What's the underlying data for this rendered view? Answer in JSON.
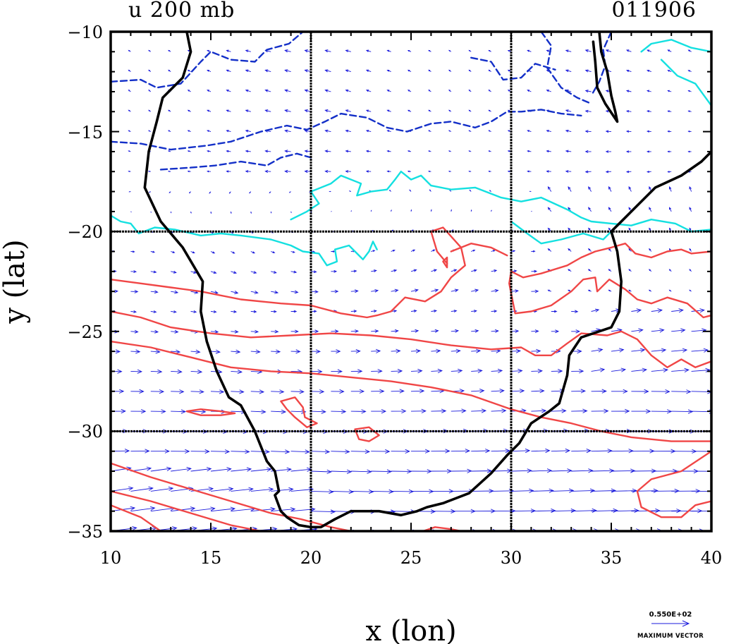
{
  "title": {
    "variable": "u 200 mb",
    "date_code": "011906"
  },
  "axes": {
    "x_label": "x (lon)",
    "y_label": "y (lat)",
    "x_range": [
      10,
      40
    ],
    "y_range": [
      -35,
      -10
    ],
    "x_ticks": [
      "10",
      "15",
      "20",
      "25",
      "30",
      "35",
      "40"
    ],
    "y_ticks": [
      "−10",
      "−15",
      "−20",
      "−25",
      "−30",
      "−35"
    ],
    "grid_lines_lon": [
      20,
      30
    ],
    "grid_lines_lat": [
      -20,
      -30
    ]
  },
  "legend": {
    "value": "0.550E+02",
    "caption": "MAXIMUM VECTOR"
  },
  "colors": {
    "frame": "#000000",
    "coastline": "#000000",
    "vectors": "#1a1adc",
    "negative_contour": "#1430c8",
    "zero_contour": "#14e0e0",
    "positive_contour": "#f04646"
  },
  "map_data": {
    "coastline_west": [
      [
        13.8,
        -10
      ],
      [
        14.0,
        -11
      ],
      [
        13.6,
        -12.3
      ],
      [
        12.6,
        -13.3
      ],
      [
        12.3,
        -14.5
      ],
      [
        11.9,
        -16.0
      ],
      [
        11.7,
        -17.8
      ],
      [
        12.5,
        -19.5
      ],
      [
        13.6,
        -20.8
      ],
      [
        14.6,
        -22.5
      ],
      [
        14.5,
        -24.0
      ],
      [
        14.8,
        -25.5
      ],
      [
        15.3,
        -27.0
      ],
      [
        15.9,
        -28.3
      ],
      [
        16.5,
        -28.7
      ],
      [
        17.2,
        -30.0
      ],
      [
        17.8,
        -31.5
      ],
      [
        18.2,
        -32.0
      ],
      [
        18.4,
        -33.0
      ],
      [
        18.2,
        -33.2
      ],
      [
        18.5,
        -34.0
      ],
      [
        18.8,
        -34.3
      ],
      [
        19.4,
        -34.7
      ],
      [
        20.0,
        -34.8
      ],
      [
        20.5,
        -34.8
      ],
      [
        21.2,
        -34.4
      ],
      [
        22.0,
        -34.0
      ],
      [
        23.4,
        -34.0
      ],
      [
        24.5,
        -34.2
      ],
      [
        25.3,
        -34.0
      ],
      [
        25.8,
        -33.8
      ],
      [
        26.6,
        -33.6
      ],
      [
        27.9,
        -33.1
      ],
      [
        29.0,
        -32.1
      ],
      [
        29.8,
        -31.2
      ],
      [
        30.4,
        -30.6
      ],
      [
        31.0,
        -29.6
      ],
      [
        31.9,
        -29.0
      ],
      [
        32.4,
        -28.6
      ],
      [
        32.8,
        -27.2
      ],
      [
        32.9,
        -26.2
      ],
      [
        33.5,
        -25.3
      ],
      [
        35.0,
        -24.8
      ],
      [
        35.4,
        -24.0
      ],
      [
        35.5,
        -22.5
      ],
      [
        35.3,
        -21.0
      ],
      [
        35.0,
        -20.0
      ],
      [
        36.0,
        -19.0
      ],
      [
        37.2,
        -17.8
      ],
      [
        38.5,
        -17.2
      ],
      [
        39.5,
        -16.5
      ],
      [
        40.0,
        -16.0
      ]
    ],
    "lake_malawi": [
      [
        34.4,
        -10.0
      ],
      [
        34.5,
        -11.0
      ],
      [
        34.8,
        -12.0
      ],
      [
        35.0,
        -13.2
      ],
      [
        35.2,
        -14.0
      ],
      [
        35.3,
        -14.5
      ],
      [
        34.7,
        -13.6
      ],
      [
        34.3,
        -12.8
      ],
      [
        34.2,
        -11.5
      ],
      [
        34.1,
        -10.5
      ]
    ],
    "negative_contours": [
      [
        [
          10.0,
          -12.5
        ],
        [
          11.5,
          -12.4
        ],
        [
          12.3,
          -12.8
        ],
        [
          13.5,
          -12.6
        ],
        [
          14.5,
          -11.5
        ],
        [
          15.0,
          -11.0
        ],
        [
          16.0,
          -11.4
        ],
        [
          17.2,
          -11.5
        ],
        [
          17.8,
          -10.9
        ],
        [
          18.9,
          -10.6
        ],
        [
          19.6,
          -10.0
        ]
      ],
      [
        [
          10.0,
          -15.5
        ],
        [
          11.5,
          -15.6
        ],
        [
          13.0,
          -15.9
        ],
        [
          14.8,
          -15.7
        ],
        [
          16.0,
          -15.5
        ],
        [
          17.5,
          -15.0
        ],
        [
          18.8,
          -14.7
        ],
        [
          19.8,
          -14.9
        ],
        [
          20.7,
          -14.5
        ],
        [
          21.5,
          -14.1
        ],
        [
          22.8,
          -14.3
        ],
        [
          23.8,
          -14.8
        ],
        [
          24.8,
          -15.0
        ],
        [
          26.0,
          -14.6
        ],
        [
          27.0,
          -14.5
        ],
        [
          28.2,
          -14.8
        ],
        [
          29.0,
          -14.5
        ],
        [
          29.8,
          -14.0
        ],
        [
          30.5,
          -14.0
        ],
        [
          31.5,
          -13.9
        ],
        [
          32.5,
          -14.1
        ],
        [
          33.5,
          -14.2
        ]
      ],
      [
        [
          12.5,
          -16.9
        ],
        [
          14.0,
          -16.8
        ],
        [
          15.2,
          -16.7
        ],
        [
          16.5,
          -16.5
        ],
        [
          17.8,
          -16.7
        ],
        [
          18.5,
          -16.3
        ],
        [
          19.3,
          -16.1
        ],
        [
          20.0,
          -16.3
        ]
      ],
      [
        [
          31.5,
          -10.0
        ],
        [
          32.0,
          -10.7
        ],
        [
          31.8,
          -11.8
        ],
        [
          32.5,
          -12.8
        ],
        [
          33.3,
          -13.3
        ],
        [
          34.0,
          -13.6
        ]
      ],
      [
        [
          28.0,
          -11.3
        ],
        [
          29.0,
          -11.5
        ],
        [
          29.6,
          -12.4
        ],
        [
          30.5,
          -12.3
        ],
        [
          31.2,
          -11.6
        ],
        [
          32.2,
          -11.9
        ]
      ],
      [
        [
          35.0,
          -10.0
        ],
        [
          34.6,
          -10.9
        ],
        [
          34.7,
          -11.7
        ],
        [
          34.4,
          -12.5
        ],
        [
          34.0,
          -13.2
        ]
      ]
    ],
    "zero_contours": [
      [
        [
          10.0,
          -19.2
        ],
        [
          10.5,
          -19.5
        ],
        [
          11.0,
          -19.6
        ],
        [
          11.4,
          -20.1
        ],
        [
          12.2,
          -19.8
        ],
        [
          13.2,
          -19.9
        ],
        [
          14.5,
          -20.2
        ],
        [
          15.5,
          -20.1
        ],
        [
          16.5,
          -20.2
        ],
        [
          18.0,
          -20.4
        ],
        [
          19.0,
          -20.7
        ],
        [
          19.6,
          -21.0
        ],
        [
          20.4,
          -21.1
        ],
        [
          20.8,
          -21.7
        ],
        [
          21.3,
          -21.5
        ],
        [
          21.2,
          -20.9
        ],
        [
          21.9,
          -20.7
        ],
        [
          22.6,
          -21.4
        ],
        [
          22.9,
          -21.0
        ],
        [
          23.1,
          -20.5
        ],
        [
          23.3,
          -20.9
        ]
      ],
      [
        [
          19.0,
          -19.4
        ],
        [
          19.8,
          -19.0
        ],
        [
          20.4,
          -18.6
        ],
        [
          20.0,
          -18.0
        ],
        [
          21.0,
          -17.6
        ],
        [
          21.5,
          -17.2
        ],
        [
          22.5,
          -17.6
        ],
        [
          22.3,
          -18.2
        ],
        [
          23.0,
          -18.0
        ],
        [
          23.8,
          -17.9
        ],
        [
          24.2,
          -17.4
        ],
        [
          24.5,
          -17.0
        ],
        [
          25.0,
          -17.4
        ],
        [
          25.5,
          -17.2
        ],
        [
          26.0,
          -17.7
        ],
        [
          27.0,
          -17.9
        ],
        [
          28.2,
          -17.8
        ],
        [
          29.5,
          -18.3
        ],
        [
          30.5,
          -18.5
        ],
        [
          31.5,
          -18.3
        ],
        [
          32.8,
          -18.9
        ],
        [
          33.5,
          -19.3
        ],
        [
          34.0,
          -19.5
        ],
        [
          35.0,
          -19.6
        ],
        [
          36.0,
          -19.7
        ],
        [
          37.0,
          -19.4
        ],
        [
          38.2,
          -19.6
        ],
        [
          39.0,
          -20.0
        ],
        [
          40.0,
          -19.9
        ]
      ],
      [
        [
          30.0,
          -19.5
        ],
        [
          30.8,
          -20.1
        ],
        [
          31.5,
          -20.6
        ],
        [
          32.5,
          -20.4
        ],
        [
          33.6,
          -20.1
        ],
        [
          34.6,
          -20.4
        ],
        [
          35.0,
          -20.0
        ]
      ],
      [
        [
          36.5,
          -11.0
        ],
        [
          37.0,
          -10.6
        ],
        [
          38.0,
          -10.4
        ],
        [
          39.0,
          -10.8
        ],
        [
          40.0,
          -11.0
        ]
      ],
      [
        [
          37.5,
          -11.4
        ],
        [
          38.3,
          -12.2
        ],
        [
          39.2,
          -12.6
        ],
        [
          40.0,
          -13.7
        ]
      ]
    ],
    "positive_contours": [
      [
        [
          10.0,
          -22.4
        ],
        [
          11.5,
          -22.6
        ],
        [
          13.0,
          -22.8
        ],
        [
          14.5,
          -23.0
        ],
        [
          16.5,
          -23.4
        ],
        [
          18.5,
          -23.6
        ],
        [
          20.0,
          -23.7
        ],
        [
          21.5,
          -24.1
        ],
        [
          22.8,
          -24.3
        ],
        [
          23.3,
          -24.2
        ],
        [
          24.0,
          -24.0
        ],
        [
          24.7,
          -23.3
        ],
        [
          25.7,
          -23.5
        ],
        [
          26.5,
          -23.0
        ],
        [
          27.0,
          -22.3
        ],
        [
          27.7,
          -21.7
        ],
        [
          27.5,
          -20.8
        ],
        [
          26.6,
          -19.8
        ],
        [
          26.0,
          -20.0
        ],
        [
          26.3,
          -21.0
        ],
        [
          26.8,
          -21.6
        ]
      ],
      [
        [
          27.0,
          -21.0
        ],
        [
          28.0,
          -20.6
        ],
        [
          29.0,
          -20.8
        ],
        [
          29.8,
          -21.2
        ]
      ],
      [
        [
          10.0,
          -24.0
        ],
        [
          11.5,
          -24.3
        ],
        [
          13.0,
          -24.8
        ],
        [
          15.0,
          -25.1
        ],
        [
          17.0,
          -25.3
        ],
        [
          19.0,
          -25.2
        ],
        [
          21.0,
          -25.1
        ],
        [
          23.0,
          -25.2
        ],
        [
          25.0,
          -25.4
        ],
        [
          27.0,
          -25.7
        ],
        [
          29.0,
          -25.9
        ],
        [
          30.5,
          -25.8
        ],
        [
          31.2,
          -26.2
        ],
        [
          32.0,
          -26.2
        ],
        [
          32.8,
          -25.6
        ],
        [
          33.5,
          -25.1
        ],
        [
          34.8,
          -25.2
        ],
        [
          35.5,
          -25.0
        ],
        [
          36.3,
          -25.4
        ],
        [
          37.0,
          -26.2
        ],
        [
          37.8,
          -26.8
        ],
        [
          38.5,
          -26.4
        ],
        [
          39.2,
          -26.8
        ],
        [
          40.0,
          -26.5
        ]
      ],
      [
        [
          10.0,
          -25.5
        ],
        [
          12.0,
          -25.8
        ],
        [
          14.0,
          -26.3
        ],
        [
          16.0,
          -26.8
        ],
        [
          18.0,
          -27.0
        ],
        [
          20.0,
          -27.1
        ],
        [
          22.0,
          -27.3
        ],
        [
          24.0,
          -27.5
        ],
        [
          26.0,
          -27.8
        ],
        [
          28.0,
          -28.2
        ],
        [
          30.0,
          -28.9
        ],
        [
          31.5,
          -29.3
        ],
        [
          33.0,
          -29.6
        ],
        [
          34.5,
          -30.0
        ],
        [
          36.0,
          -30.3
        ],
        [
          38.0,
          -30.5
        ],
        [
          40.0,
          -30.5
        ]
      ],
      [
        [
          30.0,
          -22.0
        ],
        [
          30.6,
          -22.3
        ],
        [
          31.5,
          -22.1
        ],
        [
          32.8,
          -21.7
        ],
        [
          33.5,
          -21.3
        ],
        [
          34.2,
          -21.0
        ],
        [
          35.0,
          -20.8
        ],
        [
          35.7,
          -20.6
        ],
        [
          36.2,
          -21.1
        ],
        [
          37.0,
          -21.3
        ],
        [
          37.8,
          -21.0
        ],
        [
          38.5,
          -20.9
        ],
        [
          39.0,
          -21.1
        ],
        [
          40.0,
          -21.0
        ]
      ],
      [
        [
          30.0,
          -22.0
        ],
        [
          29.9,
          -22.6
        ],
        [
          30.2,
          -24.1
        ],
        [
          31.0,
          -24.0
        ],
        [
          32.0,
          -23.7
        ],
        [
          33.0,
          -23.0
        ],
        [
          33.6,
          -22.4
        ],
        [
          34.2,
          -22.3
        ],
        [
          34.3,
          -23.0
        ],
        [
          34.9,
          -22.4
        ],
        [
          35.7,
          -22.9
        ],
        [
          36.3,
          -23.4
        ],
        [
          37.0,
          -23.6
        ],
        [
          37.8,
          -23.3
        ],
        [
          38.8,
          -23.6
        ],
        [
          39.6,
          -24.3
        ],
        [
          40.0,
          -24.2
        ]
      ],
      [
        [
          10.0,
          -31.6
        ],
        [
          12.0,
          -32.3
        ],
        [
          14.0,
          -32.9
        ],
        [
          16.0,
          -33.5
        ],
        [
          18.0,
          -34.1
        ],
        [
          19.5,
          -34.4
        ],
        [
          21.0,
          -34.8
        ],
        [
          22.0,
          -35.0
        ]
      ],
      [
        [
          10.0,
          -33.7
        ],
        [
          11.5,
          -34.3
        ],
        [
          12.5,
          -35.0
        ]
      ],
      [
        [
          10.0,
          -33.0
        ],
        [
          12.0,
          -33.5
        ],
        [
          14.0,
          -34.1
        ],
        [
          16.0,
          -34.7
        ],
        [
          17.5,
          -35.0
        ]
      ],
      [
        [
          13.8,
          -29.0
        ],
        [
          14.5,
          -28.9
        ],
        [
          15.5,
          -29.0
        ],
        [
          16.2,
          -29.1
        ],
        [
          15.5,
          -29.2
        ],
        [
          14.5,
          -29.2
        ],
        [
          13.8,
          -29.0
        ]
      ],
      [
        [
          18.5,
          -28.5
        ],
        [
          19.2,
          -28.3
        ],
        [
          19.6,
          -28.8
        ],
        [
          19.7,
          -29.3
        ],
        [
          20.3,
          -29.6
        ],
        [
          19.8,
          -29.8
        ],
        [
          19.2,
          -29.3
        ],
        [
          18.8,
          -28.9
        ],
        [
          18.5,
          -28.5
        ]
      ],
      [
        [
          22.2,
          -29.9
        ],
        [
          22.9,
          -29.8
        ],
        [
          23.4,
          -30.2
        ],
        [
          22.9,
          -30.5
        ],
        [
          22.4,
          -30.4
        ],
        [
          22.2,
          -29.9
        ]
      ],
      [
        [
          26.6,
          -21.5
        ],
        [
          26.8,
          -21.3
        ],
        [
          26.8,
          -21.8
        ],
        [
          26.6,
          -21.5
        ]
      ],
      [
        [
          40.0,
          -31.0
        ],
        [
          38.5,
          -32.0
        ],
        [
          37.0,
          -32.4
        ],
        [
          36.3,
          -33.0
        ],
        [
          36.5,
          -33.8
        ],
        [
          37.5,
          -34.3
        ],
        [
          38.5,
          -34.3
        ],
        [
          39.2,
          -33.7
        ],
        [
          40.0,
          -33.5
        ]
      ],
      [
        [
          25.6,
          -35.0
        ],
        [
          26.2,
          -34.8
        ],
        [
          27.0,
          -34.9
        ],
        [
          27.5,
          -35.0
        ]
      ]
    ],
    "vector_grid": {
      "lon_start": 10,
      "lon_end": 39.5,
      "lon_step": 1,
      "lat_start": -10,
      "lat_end": -35,
      "lat_step": -1,
      "scale_max_speed": 55
    }
  }
}
